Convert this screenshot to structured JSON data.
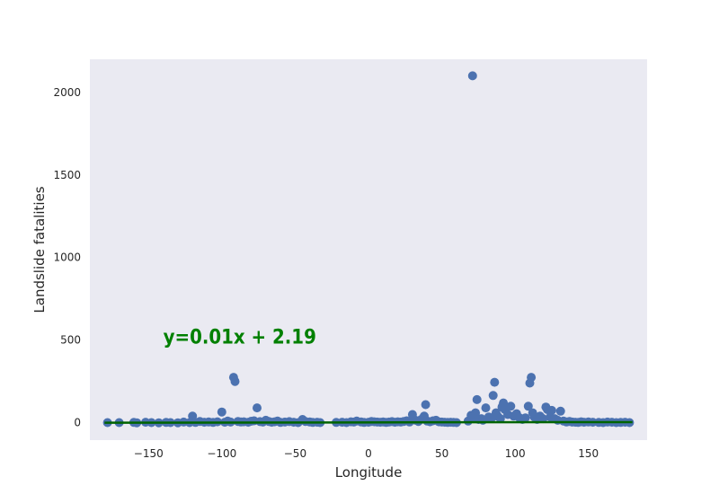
{
  "chart_data": {
    "type": "scatter",
    "title": "",
    "xlabel": "Longitude",
    "ylabel": "Landslide fatalities",
    "xlim": [
      -190,
      190
    ],
    "ylim": [
      -105,
      2200
    ],
    "xticks": [
      -150,
      -100,
      -50,
      0,
      50,
      100,
      150
    ],
    "yticks": [
      0,
      500,
      1000,
      1500,
      2000
    ],
    "xtick_labels": [
      "−150",
      "−100",
      "−50",
      "0",
      "50",
      "100",
      "150"
    ],
    "ytick_labels": [
      "0",
      "500",
      "1000",
      "1500",
      "2000"
    ],
    "grid": false,
    "background": "#eaeaf2",
    "series": [
      {
        "marker_color": "#4c72b0",
        "points": [
          [
            -178,
            1
          ],
          [
            -170,
            1
          ],
          [
            -160,
            2
          ],
          [
            -158,
            0
          ],
          [
            -152,
            3
          ],
          [
            -148,
            1
          ],
          [
            -143,
            0
          ],
          [
            -138,
            2
          ],
          [
            -135,
            1
          ],
          [
            -130,
            0
          ],
          [
            -126,
            4
          ],
          [
            -122,
            1
          ],
          [
            -120,
            40
          ],
          [
            -118,
            2
          ],
          [
            -115,
            8
          ],
          [
            -112,
            3
          ],
          [
            -109,
            5
          ],
          [
            -106,
            2
          ],
          [
            -103,
            6
          ],
          [
            -100,
            65
          ],
          [
            -98,
            3
          ],
          [
            -96,
            10
          ],
          [
            -94,
            4
          ],
          [
            -92,
            275
          ],
          [
            -91,
            250
          ],
          [
            -89,
            8
          ],
          [
            -87,
            5
          ],
          [
            -85,
            6
          ],
          [
            -82,
            3
          ],
          [
            -80,
            9
          ],
          [
            -78,
            12
          ],
          [
            -76,
            90
          ],
          [
            -74,
            7
          ],
          [
            -72,
            4
          ],
          [
            -70,
            15
          ],
          [
            -68,
            8
          ],
          [
            -66,
            3
          ],
          [
            -64,
            6
          ],
          [
            -62,
            10
          ],
          [
            -60,
            2
          ],
          [
            -57,
            4
          ],
          [
            -54,
            7
          ],
          [
            -51,
            3
          ],
          [
            -48,
            1
          ],
          [
            -45,
            20
          ],
          [
            -43,
            8
          ],
          [
            -40,
            5
          ],
          [
            -38,
            2
          ],
          [
            -35,
            3
          ],
          [
            -33,
            1
          ],
          [
            -22,
            2
          ],
          [
            -18,
            3
          ],
          [
            -15,
            1
          ],
          [
            -12,
            6
          ],
          [
            -10,
            4
          ],
          [
            -8,
            10
          ],
          [
            -5,
            5
          ],
          [
            -3,
            2
          ],
          [
            0,
            3
          ],
          [
            2,
            8
          ],
          [
            4,
            6
          ],
          [
            6,
            4
          ],
          [
            8,
            3
          ],
          [
            10,
            5
          ],
          [
            12,
            2
          ],
          [
            14,
            4
          ],
          [
            16,
            7
          ],
          [
            18,
            3
          ],
          [
            20,
            6
          ],
          [
            22,
            4
          ],
          [
            24,
            8
          ],
          [
            26,
            12
          ],
          [
            28,
            5
          ],
          [
            30,
            50
          ],
          [
            32,
            15
          ],
          [
            34,
            8
          ],
          [
            36,
            20
          ],
          [
            38,
            40
          ],
          [
            39,
            110
          ],
          [
            40,
            10
          ],
          [
            42,
            6
          ],
          [
            44,
            12
          ],
          [
            46,
            15
          ],
          [
            48,
            6
          ],
          [
            50,
            4
          ],
          [
            52,
            3
          ],
          [
            54,
            2
          ],
          [
            56,
            3
          ],
          [
            58,
            2
          ],
          [
            60,
            1
          ],
          [
            68,
            10
          ],
          [
            70,
            45
          ],
          [
            71,
            2100
          ],
          [
            72,
            30
          ],
          [
            73,
            60
          ],
          [
            74,
            140
          ],
          [
            75,
            20
          ],
          [
            77,
            25
          ],
          [
            78,
            15
          ],
          [
            80,
            90
          ],
          [
            82,
            35
          ],
          [
            84,
            30
          ],
          [
            85,
            165
          ],
          [
            86,
            245
          ],
          [
            87,
            60
          ],
          [
            88,
            40
          ],
          [
            90,
            25
          ],
          [
            91,
            95
          ],
          [
            92,
            120
          ],
          [
            93,
            80
          ],
          [
            95,
            50
          ],
          [
            97,
            100
          ],
          [
            99,
            40
          ],
          [
            100,
            45
          ],
          [
            101,
            55
          ],
          [
            103,
            30
          ],
          [
            105,
            20
          ],
          [
            107,
            30
          ],
          [
            109,
            100
          ],
          [
            110,
            240
          ],
          [
            111,
            275
          ],
          [
            112,
            60
          ],
          [
            113,
            35
          ],
          [
            115,
            20
          ],
          [
            117,
            40
          ],
          [
            119,
            25
          ],
          [
            121,
            95
          ],
          [
            122,
            80
          ],
          [
            124,
            35
          ],
          [
            125,
            75
          ],
          [
            127,
            25
          ],
          [
            129,
            15
          ],
          [
            131,
            70
          ],
          [
            133,
            10
          ],
          [
            135,
            5
          ],
          [
            137,
            8
          ],
          [
            139,
            4
          ],
          [
            141,
            3
          ],
          [
            143,
            2
          ],
          [
            145,
            6
          ],
          [
            147,
            3
          ],
          [
            150,
            5
          ],
          [
            153,
            3
          ],
          [
            157,
            2
          ],
          [
            160,
            1
          ],
          [
            163,
            4
          ],
          [
            166,
            3
          ],
          [
            169,
            1
          ],
          [
            172,
            2
          ],
          [
            175,
            3
          ],
          [
            178,
            1
          ]
        ]
      }
    ],
    "fit_line": {
      "slope": 0.01,
      "intercept": 2.19,
      "x_range": [
        -180,
        180
      ],
      "color": "#006400",
      "label": "y=0.01x + 2.19",
      "label_color": "#008000",
      "label_anchor": [
        -140,
        480
      ]
    }
  }
}
